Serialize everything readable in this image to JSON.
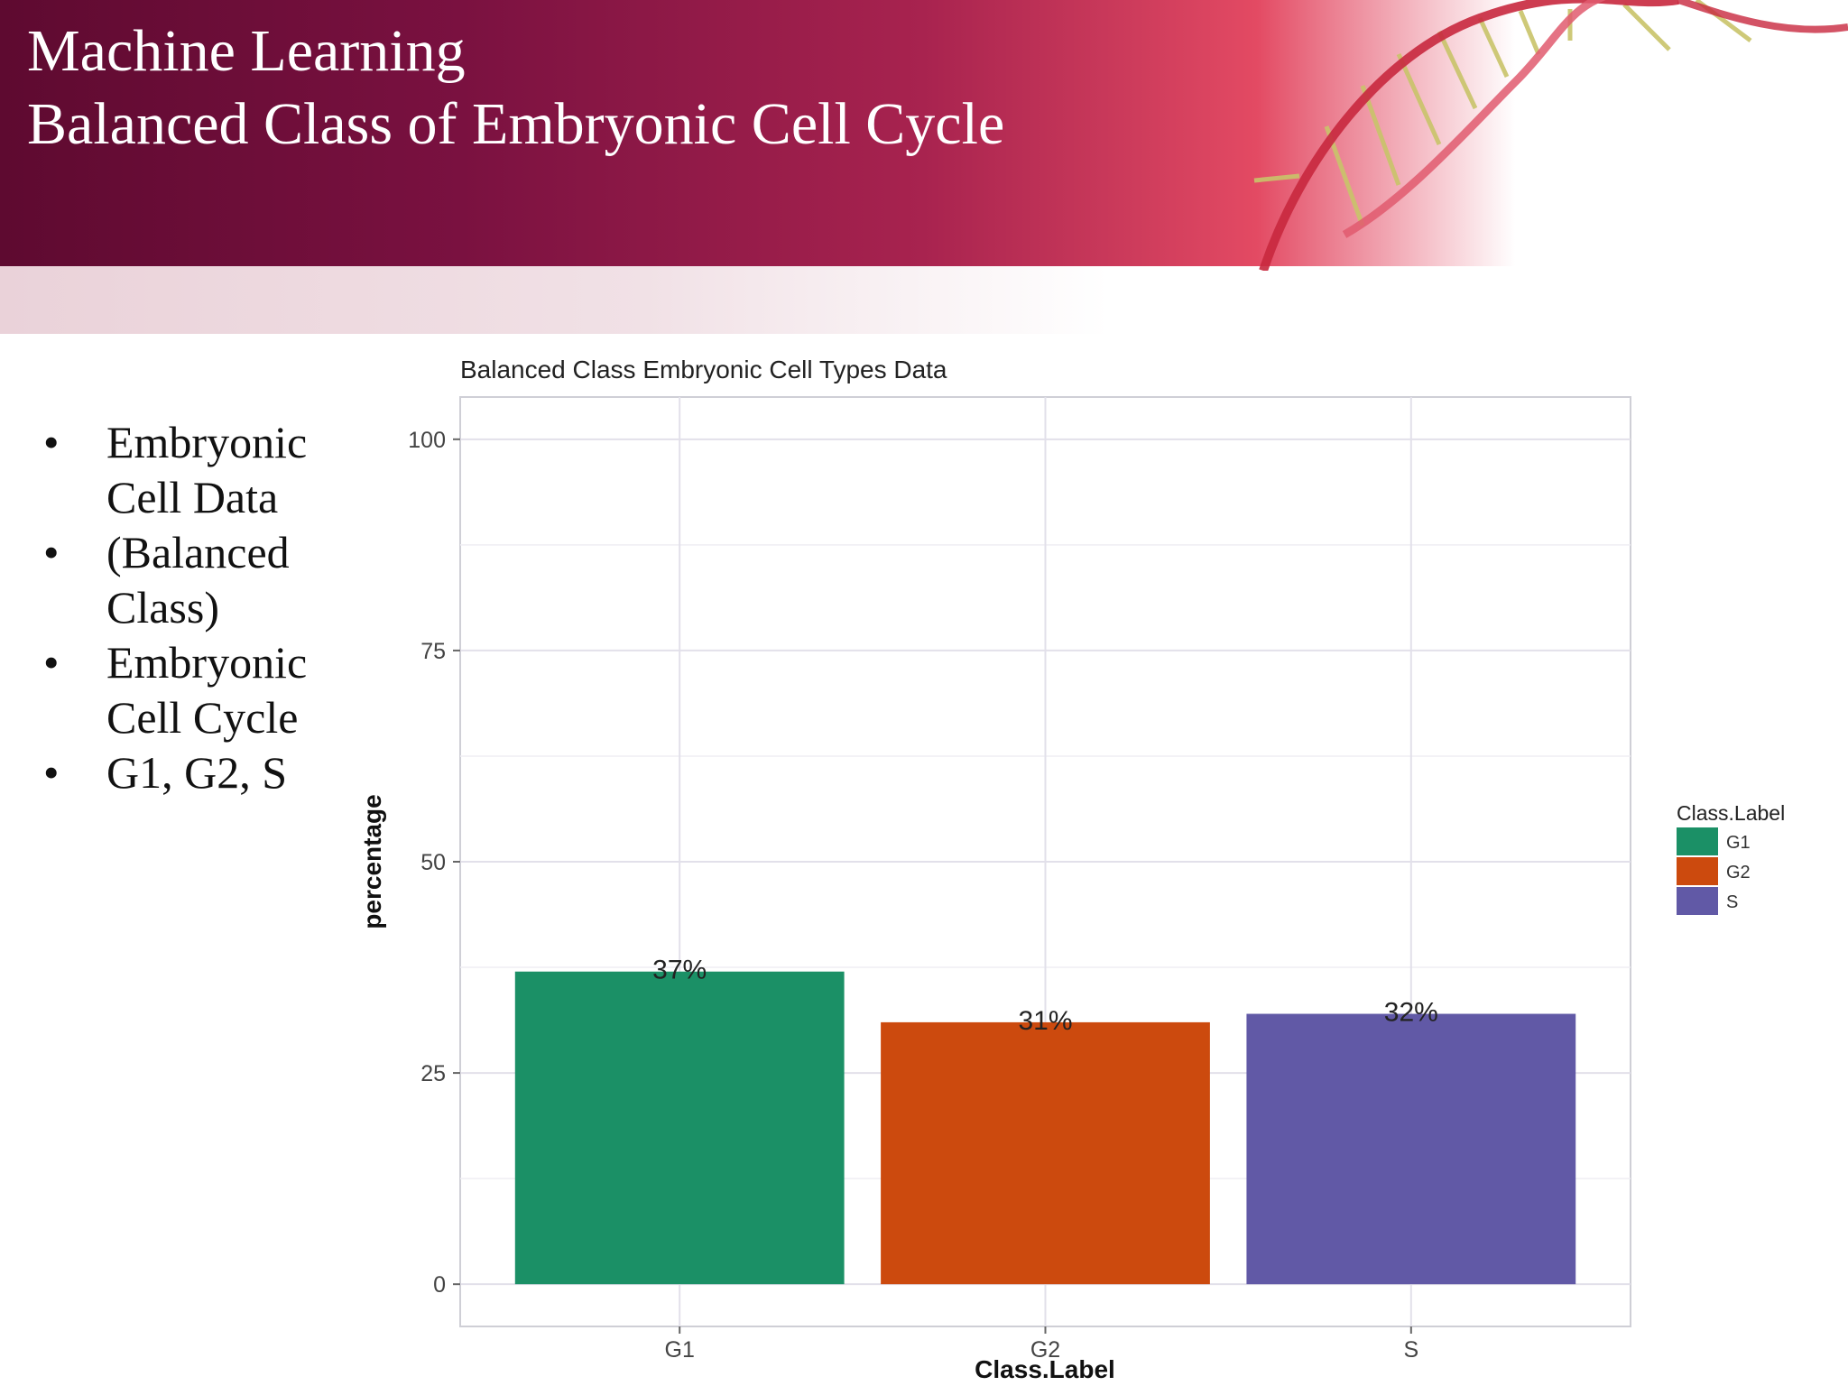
{
  "slide": {
    "title_line1": "Machine Learning",
    "title_line2": "Balanced Class of Embryonic Cell Cycle"
  },
  "bullets": [
    "Embryonic Cell Data",
    "(Balanced Class)",
    "Embryonic Cell Cycle",
    "G1, G2, S"
  ],
  "chart_data": {
    "type": "bar",
    "title": "Balanced Class Embryonic Cell Types Data",
    "xlabel": "Class.Label",
    "ylabel": "percentage",
    "categories": [
      "G1",
      "G2",
      "S"
    ],
    "values": [
      37,
      31,
      32
    ],
    "data_labels": [
      "37%",
      "31%",
      "32%"
    ],
    "colors": [
      "#1b9066",
      "#cc4a0e",
      "#6159a6"
    ],
    "ylim": [
      -5,
      105
    ],
    "yticks": [
      0,
      25,
      50,
      75,
      100
    ],
    "grid": true,
    "legend": {
      "title": "Class.Label",
      "entries": [
        "G1",
        "G2",
        "S"
      ],
      "placement": "right"
    }
  }
}
